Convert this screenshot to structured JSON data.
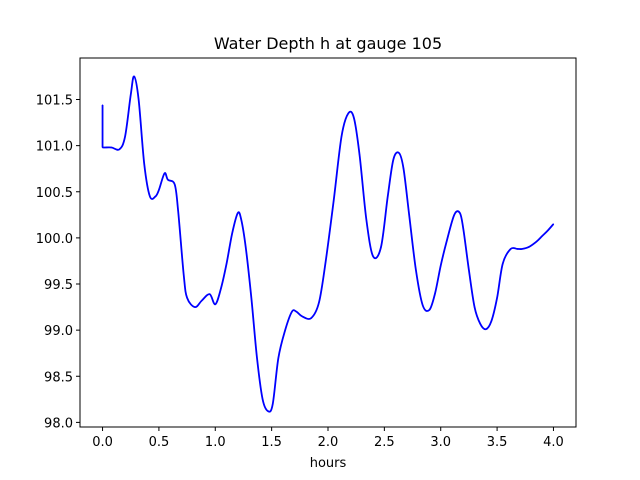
{
  "chart_data": {
    "type": "line",
    "title": "Water Depth h at gauge 105",
    "xlabel": "hours",
    "ylabel": "",
    "xlim": [
      -0.2,
      4.2
    ],
    "ylim": [
      97.95,
      101.95
    ],
    "xticks": [
      0.0,
      0.5,
      1.0,
      1.5,
      2.0,
      2.5,
      3.0,
      3.5,
      4.0
    ],
    "xtick_labels": [
      "0.0",
      "0.5",
      "1.0",
      "1.5",
      "2.0",
      "2.5",
      "3.0",
      "3.5",
      "4.0"
    ],
    "yticks": [
      98.0,
      98.5,
      99.0,
      99.5,
      100.0,
      100.5,
      101.0,
      101.5
    ],
    "ytick_labels": [
      "98.0",
      "98.5",
      "99.0",
      "99.5",
      "100.0",
      "100.5",
      "101.0",
      "101.5"
    ],
    "grid": false,
    "legend": "none",
    "series": [
      {
        "color": "#0000ff",
        "x": [
          0.0,
          0.0,
          0.02,
          0.08,
          0.15,
          0.2,
          0.25,
          0.28,
          0.32,
          0.37,
          0.42,
          0.47,
          0.5,
          0.55,
          0.58,
          0.64,
          0.67,
          0.72,
          0.75,
          0.82,
          0.88,
          0.95,
          1.0,
          1.05,
          1.1,
          1.15,
          1.2,
          1.23,
          1.27,
          1.32,
          1.37,
          1.42,
          1.47,
          1.51,
          1.56,
          1.62,
          1.68,
          1.72,
          1.77,
          1.85,
          1.92,
          1.98,
          2.05,
          2.12,
          2.18,
          2.23,
          2.28,
          2.34,
          2.4,
          2.47,
          2.53,
          2.58,
          2.63,
          2.67,
          2.72,
          2.78,
          2.84,
          2.9,
          2.95,
          3.0,
          3.05,
          3.12,
          3.17,
          3.2,
          3.25,
          3.3,
          3.35,
          3.4,
          3.45,
          3.5,
          3.55,
          3.62,
          3.68,
          3.72,
          3.78,
          3.85,
          3.9,
          3.95,
          4.0
        ],
        "y": [
          101.44,
          100.98,
          100.98,
          100.98,
          100.96,
          101.1,
          101.55,
          101.75,
          101.5,
          100.8,
          100.45,
          100.45,
          100.52,
          100.7,
          100.63,
          100.58,
          100.3,
          99.6,
          99.35,
          99.25,
          99.32,
          99.39,
          99.28,
          99.45,
          99.72,
          100.05,
          100.27,
          100.2,
          99.9,
          99.35,
          98.7,
          98.25,
          98.12,
          98.2,
          98.7,
          99.0,
          99.2,
          99.2,
          99.15,
          99.13,
          99.3,
          99.75,
          100.4,
          101.1,
          101.35,
          101.3,
          100.9,
          100.2,
          99.8,
          99.9,
          100.45,
          100.85,
          100.92,
          100.75,
          100.25,
          99.65,
          99.27,
          99.22,
          99.4,
          99.7,
          99.95,
          100.25,
          100.27,
          100.1,
          99.65,
          99.25,
          99.07,
          99.01,
          99.1,
          99.35,
          99.72,
          99.88,
          99.88,
          99.88,
          99.9,
          99.96,
          100.02,
          100.08,
          100.15
        ]
      }
    ]
  }
}
